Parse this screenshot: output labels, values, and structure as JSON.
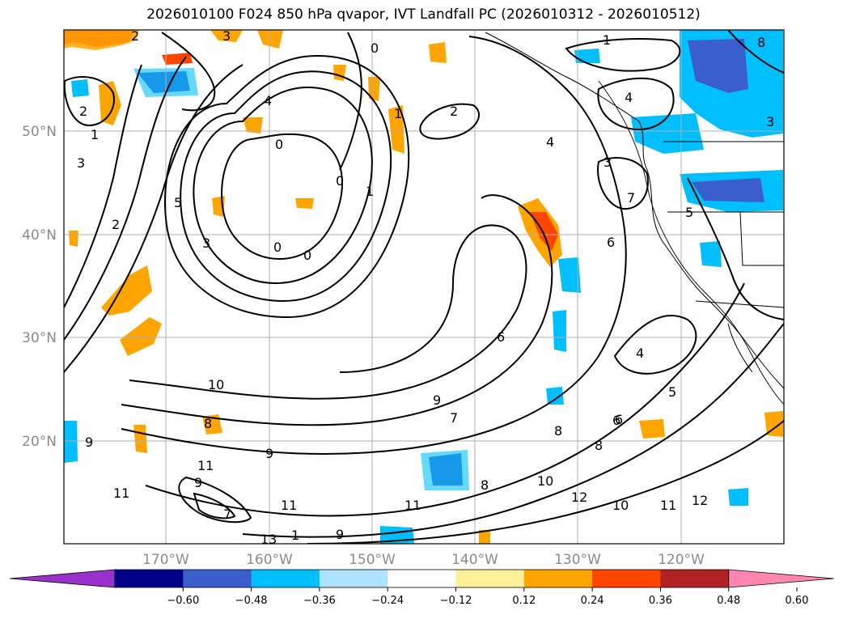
{
  "title": "2026010100 F024 850 hPa qvapor, IVT Landfall PC (2026010312 - 2026010512)",
  "map": {
    "lat_labels": [
      "50°N",
      "40°N",
      "30°N",
      "20°N"
    ],
    "lon_labels": [
      "170°W",
      "160°W",
      "150°W",
      "140°W",
      "130°W",
      "120°W"
    ]
  },
  "colorbar": {
    "colors": [
      "#9932cc",
      "#00008b",
      "#3a5fcd",
      "#00bfff",
      "#aee3fb",
      "#ffffff",
      "#fff09a",
      "#ffa500",
      "#ff4500",
      "#b22222",
      "#ff86b0"
    ],
    "tick_labels": [
      "−0.60",
      "−0.48",
      "−0.36",
      "−0.24",
      "−0.12",
      "0.12",
      "0.24",
      "0.36",
      "0.48",
      "0.60"
    ]
  },
  "contour_labels": [
    "2",
    "3",
    "0",
    "1",
    "4",
    "2",
    "1",
    "8",
    "2",
    "1",
    "3",
    "4",
    "3",
    "0",
    "0",
    "5",
    "3",
    "2",
    "0",
    "0",
    "1",
    "4",
    "7",
    "6",
    "6",
    "3",
    "10",
    "9",
    "7",
    "8",
    "6",
    "9",
    "8",
    "9",
    "11",
    "11",
    "9",
    "11",
    "7",
    "13",
    "1",
    "9",
    "10",
    "11",
    "8",
    "12",
    "10",
    "11",
    "12",
    "5",
    "4",
    "6",
    "8",
    "5"
  ]
}
